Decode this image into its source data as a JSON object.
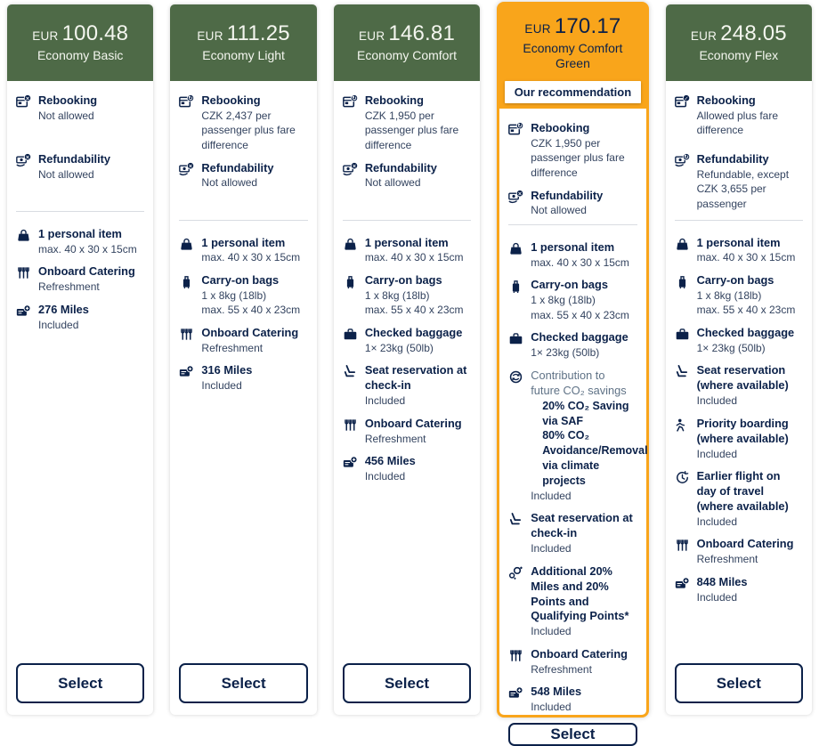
{
  "colors": {
    "header_green": "#4e6a47",
    "accent_orange": "#f9a51b",
    "navy": "#0b2149",
    "description_text": "#33435f",
    "muted_title": "#5f7286"
  },
  "ui": {
    "select_label": "Select"
  },
  "cards": [
    {
      "currency": "EUR",
      "price": "100.48",
      "name": "Economy Basic",
      "recommended": false,
      "top_features": [
        {
          "icon": "rebooking",
          "badge": "x",
          "title": "Rebooking",
          "lines": [
            "Not allowed"
          ]
        },
        {
          "icon": "refundability",
          "badge": "x",
          "title": "Refundability",
          "lines": [
            "Not allowed"
          ]
        }
      ],
      "features": [
        {
          "icon": "personal-item",
          "title": "1 personal item",
          "lines": [
            "max. 40 x 30 x 15cm"
          ]
        },
        {
          "icon": "onboard-catering",
          "title": "Onboard Catering",
          "lines": [
            "Refreshment"
          ]
        },
        {
          "icon": "miles",
          "title": "276 Miles",
          "lines": [
            "Included"
          ]
        }
      ]
    },
    {
      "currency": "EUR",
      "price": "111.25",
      "name": "Economy Light",
      "recommended": false,
      "top_features": [
        {
          "icon": "rebooking",
          "badge": "refresh",
          "title": "Rebooking",
          "lines": [
            "CZK 2,437 per passenger plus fare difference"
          ]
        },
        {
          "icon": "refundability",
          "badge": "x",
          "title": "Refundability",
          "lines": [
            "Not allowed"
          ]
        }
      ],
      "features": [
        {
          "icon": "personal-item",
          "title": "1 personal item",
          "lines": [
            "max. 40 x 30 x 15cm"
          ]
        },
        {
          "icon": "carry-on-bag",
          "title": "Carry-on bags",
          "lines": [
            "1 x 8kg (18lb)",
            "max. 55 x 40 x 23cm"
          ]
        },
        {
          "icon": "onboard-catering",
          "title": "Onboard Catering",
          "lines": [
            "Refreshment"
          ]
        },
        {
          "icon": "miles",
          "title": "316 Miles",
          "lines": [
            "Included"
          ]
        }
      ]
    },
    {
      "currency": "EUR",
      "price": "146.81",
      "name": "Economy Comfort",
      "recommended": false,
      "top_features": [
        {
          "icon": "rebooking",
          "badge": "refresh",
          "title": "Rebooking",
          "lines": [
            "CZK 1,950 per passenger plus fare difference"
          ]
        },
        {
          "icon": "refundability",
          "badge": "x",
          "title": "Refundability",
          "lines": [
            "Not allowed"
          ]
        }
      ],
      "features": [
        {
          "icon": "personal-item",
          "title": "1 personal item",
          "lines": [
            "max. 40 x 30 x 15cm"
          ]
        },
        {
          "icon": "carry-on-bag",
          "title": "Carry-on bags",
          "lines": [
            "1 x 8kg (18lb)",
            "max. 55 x 40 x 23cm"
          ]
        },
        {
          "icon": "checked-baggage",
          "title": "Checked baggage",
          "lines": [
            "1× 23kg (50lb)"
          ]
        },
        {
          "icon": "seat-reservation",
          "title": "Seat reservation at check-in",
          "lines": [
            "Included"
          ]
        },
        {
          "icon": "onboard-catering",
          "title": "Onboard Catering",
          "lines": [
            "Refreshment"
          ]
        },
        {
          "icon": "miles",
          "title": "456 Miles",
          "lines": [
            "Included"
          ]
        }
      ]
    },
    {
      "currency": "EUR",
      "price": "170.17",
      "name": "Economy Comfort Green",
      "recommended": true,
      "recommendation_label": "Our recommendation",
      "top_features": [
        {
          "icon": "rebooking",
          "badge": "refresh",
          "title": "Rebooking",
          "lines": [
            "CZK 1,950 per passenger plus fare difference"
          ]
        },
        {
          "icon": "refundability",
          "badge": "x",
          "title": "Refundability",
          "lines": [
            "Not allowed"
          ]
        }
      ],
      "features": [
        {
          "icon": "personal-item",
          "title": "1 personal item",
          "lines": [
            "max. 40 x 30 x 15cm"
          ]
        },
        {
          "icon": "carry-on-bag",
          "title": "Carry-on bags",
          "lines": [
            "1 x 8kg (18lb)",
            "max. 55 x 40 x 23cm"
          ]
        },
        {
          "icon": "checked-baggage",
          "title": "Checked baggage",
          "lines": [
            "1× 23kg (50lb)"
          ]
        },
        {
          "icon": "co2-savings",
          "title": "Contribution to future CO₂ savings",
          "title_muted": true,
          "bold_lines": [
            "20% CO₂ Saving via SAF",
            "80% CO₂ Avoidance/Removal via climate projects"
          ],
          "lines": [
            "Included"
          ]
        },
        {
          "icon": "seat-reservation",
          "title": "Seat reservation at check-in",
          "lines": [
            "Included"
          ]
        },
        {
          "icon": "bonus-points",
          "title": "Additional 20% Miles and 20% Points and Qualifying Points*",
          "lines": [
            "Included"
          ]
        },
        {
          "icon": "onboard-catering",
          "title": "Onboard Catering",
          "lines": [
            "Refreshment"
          ]
        },
        {
          "icon": "miles",
          "title": "548 Miles",
          "lines": [
            "Included"
          ]
        }
      ]
    },
    {
      "currency": "EUR",
      "price": "248.05",
      "name": "Economy Flex",
      "recommended": false,
      "top_features": [
        {
          "icon": "rebooking",
          "badge": "check",
          "title": "Rebooking",
          "lines": [
            "Allowed plus fare difference"
          ]
        },
        {
          "icon": "refundability",
          "badge": "refresh",
          "title": "Refundability",
          "lines": [
            "Refundable, except CZK 3,655 per passenger"
          ]
        }
      ],
      "features": [
        {
          "icon": "personal-item",
          "title": "1 personal item",
          "lines": [
            "max. 40 x 30 x 15cm"
          ]
        },
        {
          "icon": "carry-on-bag",
          "title": "Carry-on bags",
          "lines": [
            "1 x 8kg (18lb)",
            "max. 55 x 40 x 23cm"
          ]
        },
        {
          "icon": "checked-baggage",
          "title": "Checked baggage",
          "lines": [
            "1× 23kg (50lb)"
          ]
        },
        {
          "icon": "seat-reservation",
          "title": "Seat reservation (where available)",
          "lines": [
            "Included"
          ]
        },
        {
          "icon": "priority-boarding",
          "title": "Priority boarding (where available)",
          "lines": [
            "Included"
          ]
        },
        {
          "icon": "earlier-flight",
          "title": "Earlier flight on day of travel (where available)",
          "lines": [
            "Included"
          ]
        },
        {
          "icon": "onboard-catering",
          "title": "Onboard Catering",
          "lines": [
            "Refreshment"
          ]
        },
        {
          "icon": "miles",
          "title": "848 Miles",
          "lines": [
            "Included"
          ]
        }
      ]
    }
  ]
}
